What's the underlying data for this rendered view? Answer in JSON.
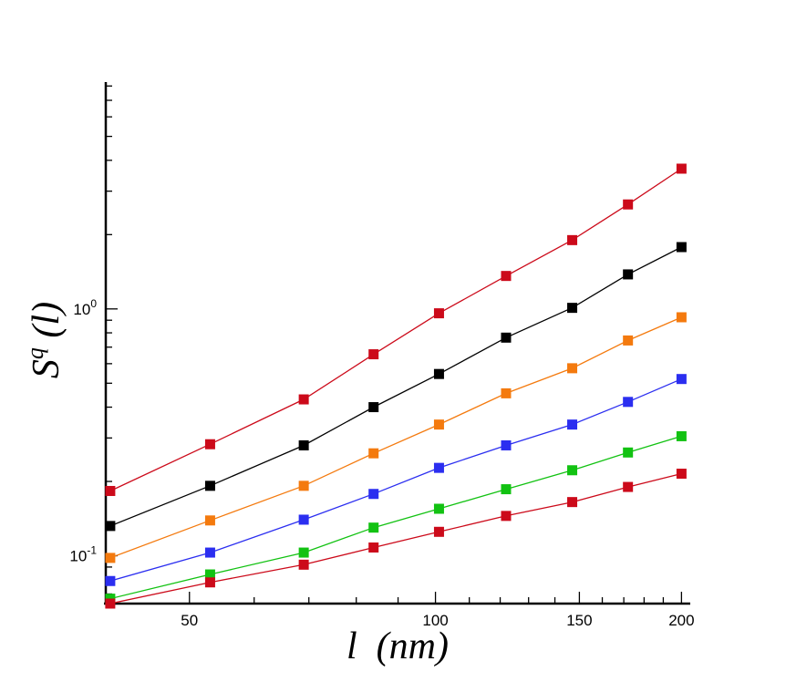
{
  "chart_data": {
    "type": "line",
    "x_scale": "log",
    "y_scale": "log",
    "xlabel": "l  (nm)",
    "ylabel": {
      "base": "S",
      "superscript": "q",
      "suffix": " (l)"
    },
    "xlim": [
      39.5,
      205
    ],
    "ylim": [
      0.064,
      8.3
    ],
    "x_ticks": [
      {
        "value": 50,
        "label": "50"
      },
      {
        "value": 100,
        "label": "100"
      },
      {
        "value": 150,
        "label": "150"
      },
      {
        "value": 200,
        "label": "200"
      }
    ],
    "y_ticks": [
      {
        "value": 0.1,
        "base": "10",
        "exp": "-1"
      },
      {
        "value": 1.0,
        "base": "10",
        "exp": "0"
      }
    ],
    "grid": false,
    "marker": "square",
    "x": [
      40,
      53,
      69,
      84,
      101,
      122,
      147,
      172,
      200
    ],
    "series": [
      {
        "color": "#cc0a1a",
        "values": [
          0.183,
          0.283,
          0.43,
          0.655,
          0.96,
          1.36,
          1.9,
          2.65,
          3.7
        ]
      },
      {
        "color": "#000000",
        "values": [
          0.132,
          0.192,
          0.28,
          0.4,
          0.545,
          0.765,
          1.01,
          1.38,
          1.78
        ]
      },
      {
        "color": "#f47a0e",
        "values": [
          0.098,
          0.139,
          0.192,
          0.26,
          0.34,
          0.455,
          0.575,
          0.745,
          0.925
        ]
      },
      {
        "color": "#2b2ef0",
        "values": [
          0.079,
          0.103,
          0.14,
          0.178,
          0.227,
          0.28,
          0.34,
          0.42,
          0.52
        ]
      },
      {
        "color": "#12c212",
        "values": [
          0.067,
          0.084,
          0.103,
          0.13,
          0.155,
          0.186,
          0.222,
          0.262,
          0.305
        ]
      },
      {
        "color": "#cc0a1a",
        "values": [
          0.064,
          0.078,
          0.092,
          0.108,
          0.125,
          0.145,
          0.165,
          0.19,
          0.215
        ]
      }
    ]
  }
}
